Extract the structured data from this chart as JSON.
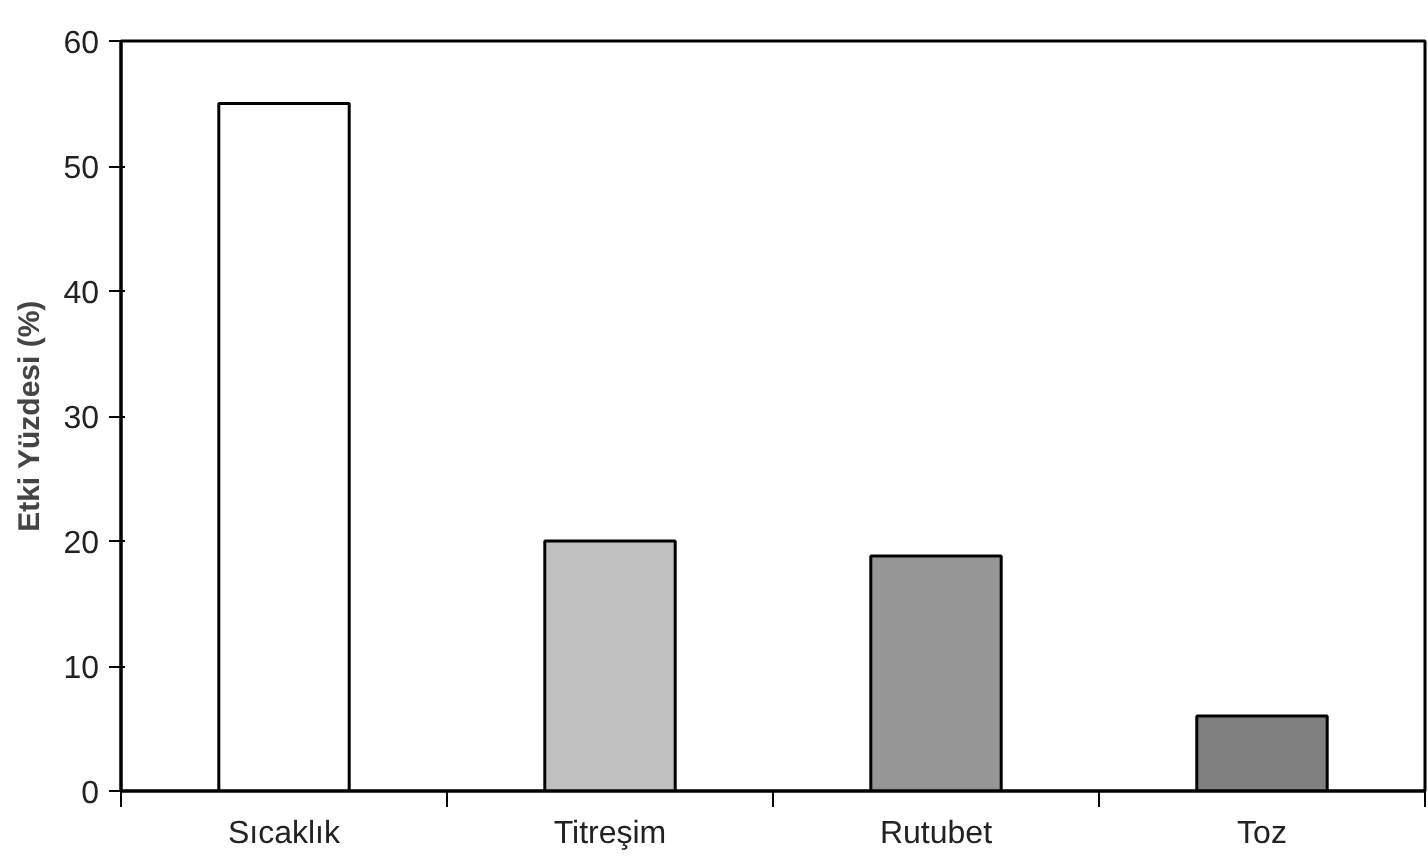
{
  "chart_data": {
    "type": "bar",
    "ylabel": "Etki Yüzdesi (%)",
    "categories": [
      "Sıcaklık",
      "Titreşim",
      "Rutubet",
      "Toz"
    ],
    "values": [
      55,
      20,
      18.8,
      6
    ],
    "colors": [
      "#ffffff",
      "#c0c0c0",
      "#969696",
      "#808080"
    ],
    "ylim": [
      0,
      60
    ],
    "yticks": [
      0,
      10,
      20,
      30,
      40,
      50,
      60
    ],
    "grid": false
  }
}
